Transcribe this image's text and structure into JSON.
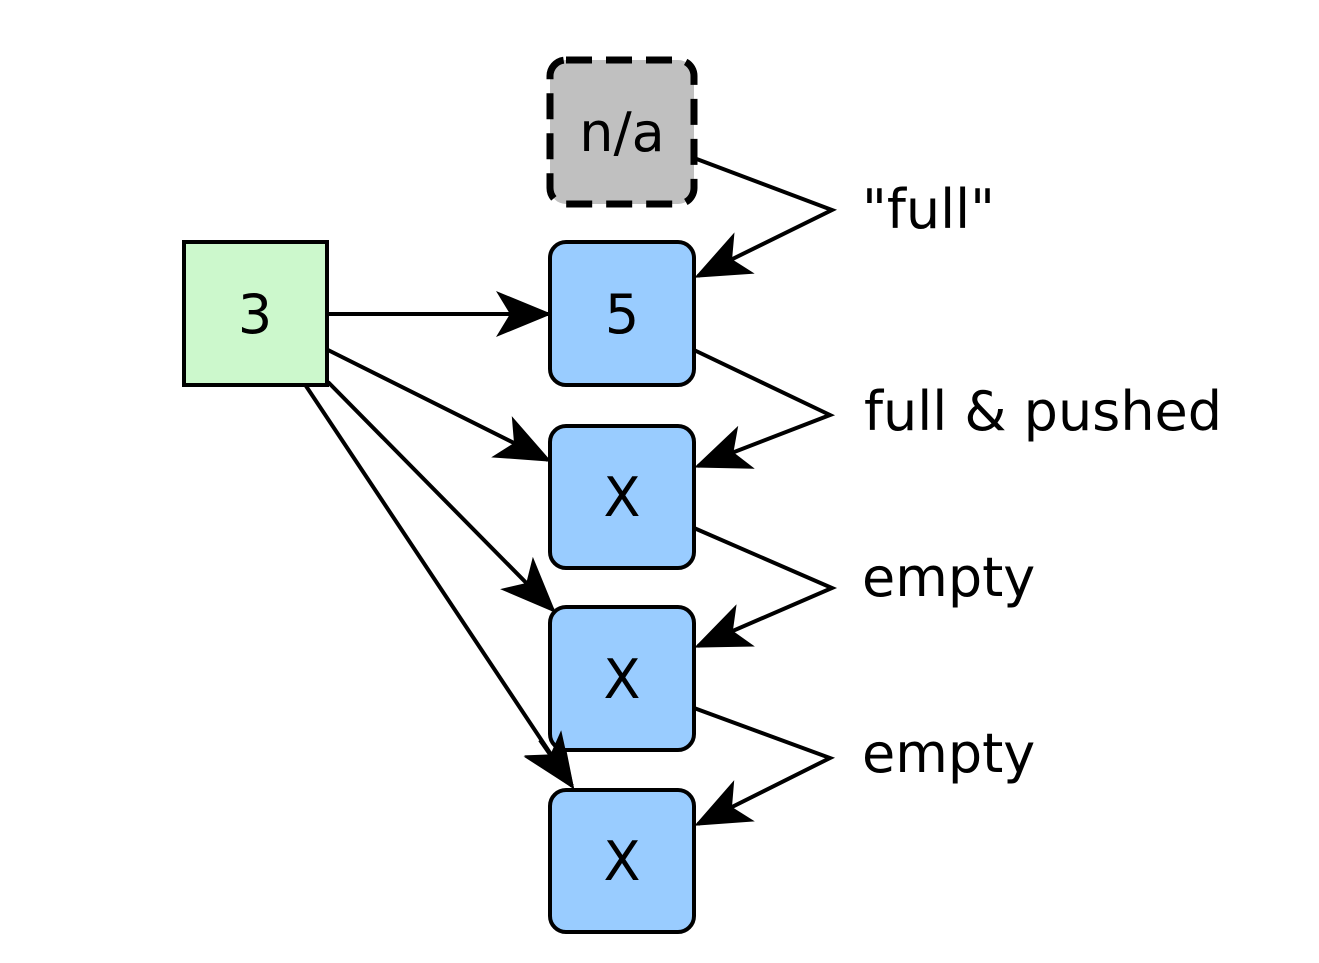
{
  "colors": {
    "source_fill": "#ccf8cc",
    "slot_fill": "#99ccff",
    "na_fill": "#c0c0c0",
    "stroke": "#000000"
  },
  "source": {
    "label": "3"
  },
  "na_box": {
    "label": "n/a"
  },
  "slots": [
    {
      "label": "5"
    },
    {
      "label": "X"
    },
    {
      "label": "X"
    },
    {
      "label": "X"
    }
  ],
  "transitions": [
    {
      "label": "\"full\""
    },
    {
      "label": "full & pushed"
    },
    {
      "label": "empty"
    },
    {
      "label": "empty"
    }
  ]
}
